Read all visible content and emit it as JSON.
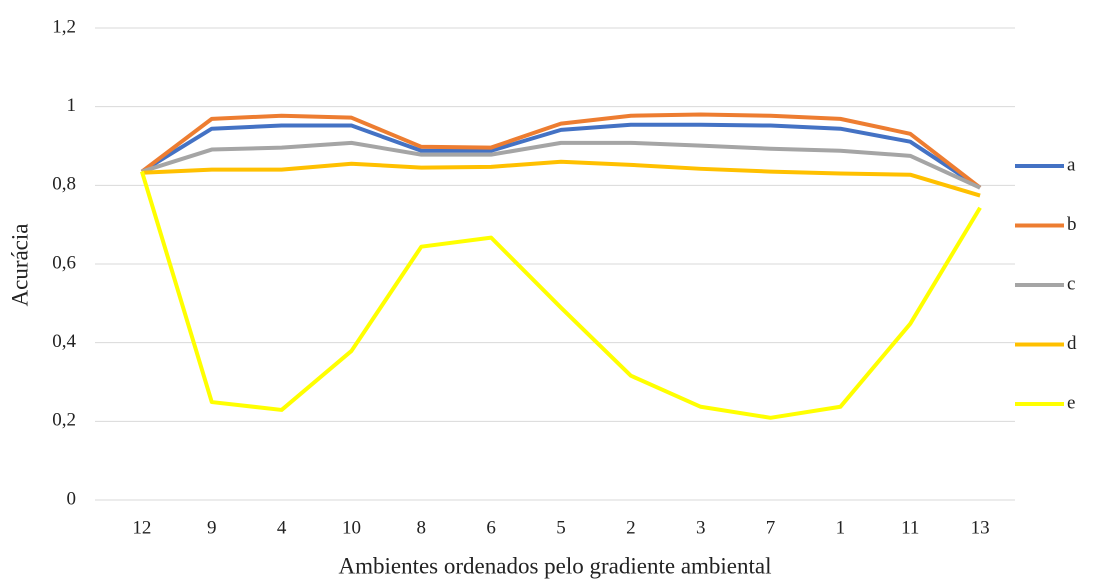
{
  "chart_data": {
    "type": "line",
    "x_label": "Ambientes ordenados pelo gradiente ambiental",
    "y_label": "Acurácia",
    "categories": [
      "12",
      "9",
      "4",
      "10",
      "8",
      "6",
      "5",
      "2",
      "3",
      "7",
      "1",
      "11",
      "13"
    ],
    "series": [
      {
        "name": "a",
        "color": "#4472c4",
        "values": [
          0.835,
          0.944,
          0.952,
          0.952,
          0.888,
          0.888,
          0.941,
          0.954,
          0.954,
          0.952,
          0.944,
          0.911,
          0.794
        ]
      },
      {
        "name": "b",
        "color": "#ed7d31",
        "values": [
          0.835,
          0.969,
          0.977,
          0.972,
          0.898,
          0.896,
          0.957,
          0.977,
          0.98,
          0.977,
          0.969,
          0.931,
          0.794
        ]
      },
      {
        "name": "c",
        "color": "#a5a5a5",
        "values": [
          0.835,
          0.891,
          0.896,
          0.908,
          0.878,
          0.878,
          0.908,
          0.908,
          0.901,
          0.893,
          0.888,
          0.875,
          0.794
        ]
      },
      {
        "name": "d",
        "color": "#ffc000",
        "values": [
          0.832,
          0.84,
          0.84,
          0.855,
          0.845,
          0.847,
          0.86,
          0.852,
          0.842,
          0.835,
          0.83,
          0.827,
          0.774
        ]
      },
      {
        "name": "e",
        "color": "#ffff00",
        "values": [
          0.835,
          0.249,
          0.229,
          0.379,
          0.644,
          0.667,
          0.489,
          0.316,
          0.237,
          0.209,
          0.237,
          0.448,
          0.743
        ]
      }
    ],
    "ylim": [
      0,
      1.2
    ],
    "yticks": [
      0,
      {
        "value": 0.2,
        "label": "0,2"
      },
      {
        "value": 0.4,
        "label": "0,4"
      },
      {
        "value": 0.6,
        "label": "0,6"
      },
      {
        "value": 0.8,
        "label": "0,8"
      },
      1,
      {
        "value": 1.2,
        "label": "1,2"
      }
    ],
    "grid": true,
    "legend": "right"
  }
}
